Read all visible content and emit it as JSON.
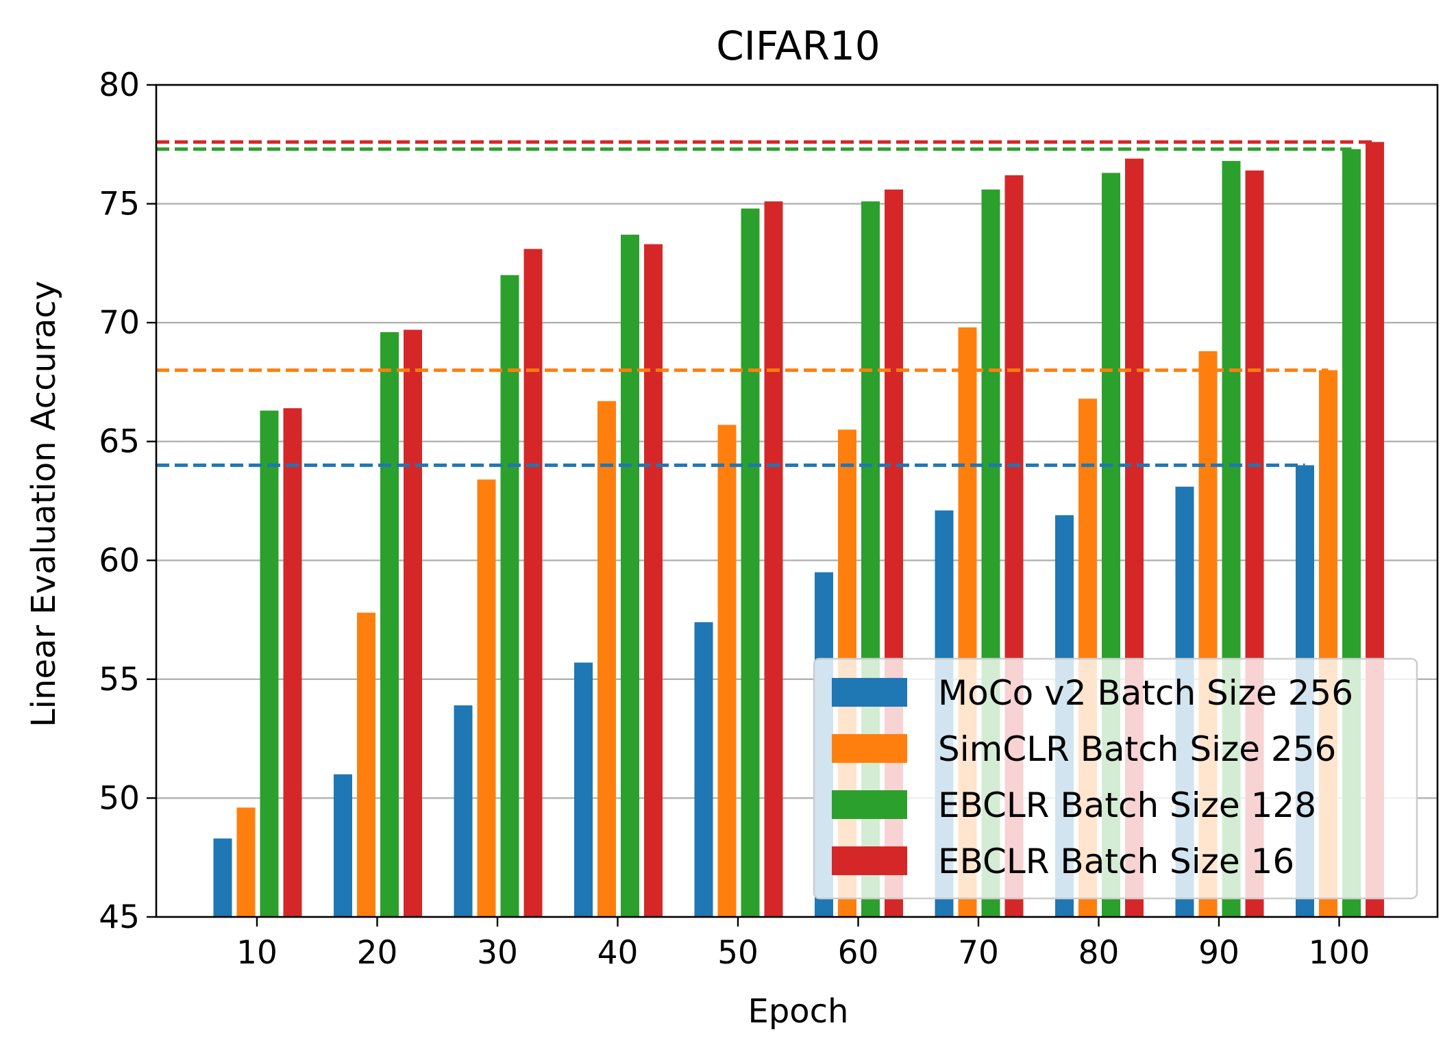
{
  "chart_data": {
    "type": "bar",
    "title": "CIFAR10",
    "xlabel": "Epoch",
    "ylabel": "Linear Evaluation Accuracy",
    "ylim": [
      45,
      80
    ],
    "yticks": [
      45,
      50,
      55,
      60,
      65,
      70,
      75,
      80
    ],
    "grid": "horizontal",
    "legend_position": "lower-right",
    "categories": [
      "10",
      "20",
      "30",
      "40",
      "50",
      "60",
      "70",
      "80",
      "90",
      "100"
    ],
    "series": [
      {
        "name": "MoCo v2 Batch Size 256",
        "color": "#1f77b4",
        "values": [
          48.3,
          51.0,
          53.9,
          55.7,
          57.4,
          59.5,
          62.1,
          61.9,
          63.1,
          64.0
        ],
        "reference_line": 64.0
      },
      {
        "name": "SimCLR Batch Size 256",
        "color": "#ff7f0e",
        "values": [
          49.6,
          57.8,
          63.4,
          66.7,
          65.7,
          65.5,
          69.8,
          66.8,
          68.8,
          68.0
        ],
        "reference_line": 68.0
      },
      {
        "name": "EBCLR Batch Size 128",
        "color": "#2ca02c",
        "values": [
          66.3,
          69.6,
          72.0,
          73.7,
          74.8,
          75.1,
          75.6,
          76.3,
          76.8,
          77.3
        ],
        "reference_line": 77.3
      },
      {
        "name": "EBCLR Batch Size 16",
        "color": "#d62728",
        "values": [
          66.4,
          69.7,
          73.1,
          73.3,
          75.1,
          75.6,
          76.2,
          76.9,
          76.4,
          77.6
        ],
        "reference_line": 77.6
      }
    ]
  }
}
